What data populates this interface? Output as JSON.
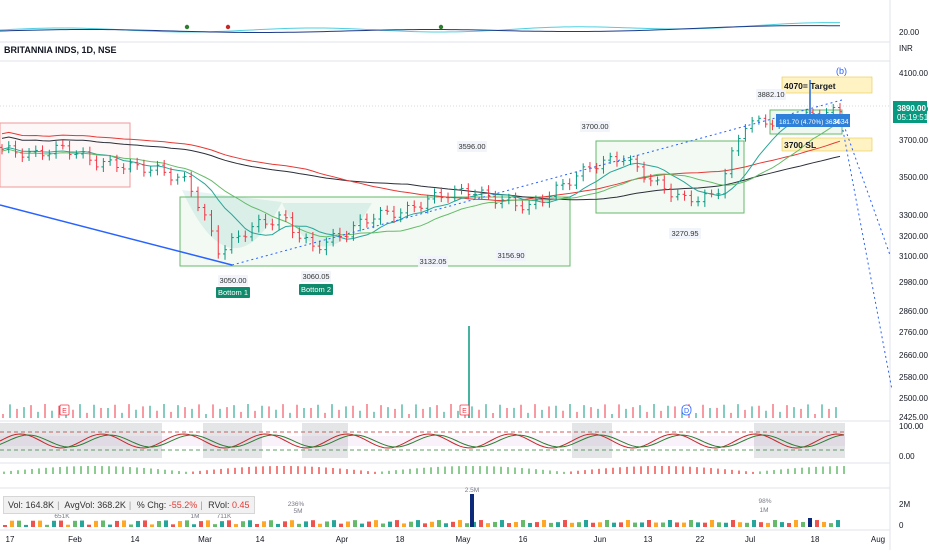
{
  "header": {
    "symbol": "BRITANNIA INDS",
    "interval": "1D",
    "exchange": "NSE",
    "currency": "INR"
  },
  "colors": {
    "up": "#089981",
    "down": "#f23645",
    "sma_long": "#2a2e39",
    "sma_mid": "#e53935",
    "ema_fast": "#26a69a",
    "ema_slow": "#66bb6a",
    "trendline": "#2962ff",
    "box_red": "#ef9a9a",
    "box_green": "#66bb6a",
    "target_fill": "#fff3c4",
    "stoch_k": "#c62828",
    "stoch_d": "#2e7d32",
    "volume_bar": "#0d2a7a"
  },
  "price_axis": {
    "ticks": [
      4100,
      3900,
      3700,
      3500,
      3300,
      3200,
      3100,
      2980,
      2860,
      2760,
      2660,
      2580,
      2500,
      2425
    ],
    "tick_labels": [
      "4100.00",
      "3900.00",
      "3700.00",
      "3500.00",
      "3300.00",
      "3200.00",
      "3100.00",
      "2980.00",
      "2860.00",
      "2760.00",
      "2660.00",
      "2580.00",
      "2500.00",
      "2425.00"
    ],
    "top_tick_label": "20.00",
    "last_price_label": "3890.00",
    "countdown": "05:19:51",
    "ma_tag_label": "3634"
  },
  "time_axis": {
    "labels": [
      "17",
      "Feb",
      "14",
      "Mar",
      "14",
      "Apr",
      "18",
      "May",
      "16",
      "Jun",
      "13",
      "22",
      "Jul",
      "18",
      "Aug"
    ]
  },
  "annotations": {
    "target_label": "4070= Target",
    "sl_label": "3700 SL",
    "wave_b": "(b)",
    "bottom1": "Bottom 1",
    "bottom2": "Bottom 2",
    "prices": [
      "3050.00",
      "3060.05",
      "3132.05",
      "3156.90",
      "3596.00",
      "3700.00",
      "3270.95",
      "3882.10"
    ],
    "position_label": "181.70 (4.70%) 3634"
  },
  "osc_axis": {
    "top": "100.00",
    "zero": "0.00"
  },
  "volume_axis": {
    "top": "2M",
    "zero": "0"
  },
  "volume_legend": {
    "vol_label": "Vol:",
    "vol": "164.8K",
    "avg_label": "AvgVol:",
    "avg": "368.2K",
    "chg_label": "% Chg:",
    "chg": "-55.2%",
    "rvol_label": "RVol:",
    "rvol": "0.45"
  },
  "volume_labels": [
    "651K",
    "236%",
    "5M",
    "1M",
    "718K",
    "711K",
    "6%",
    "2.5M",
    "98%",
    "1M"
  ],
  "events": {
    "earnings": "E",
    "dividend": "D"
  },
  "chart_data": {
    "type": "candlestick",
    "title": "BRITANNIA INDS, 1D, NSE",
    "ylabel": "INR",
    "ylim": [
      2425,
      4100
    ],
    "x": [
      "Jan 17",
      "Jan 24",
      "Jan 31",
      "Feb 7",
      "Feb 14",
      "Feb 21",
      "Feb 28",
      "Mar 6",
      "Mar 13",
      "Mar 20",
      "Mar 27",
      "Apr 3",
      "Apr 10",
      "Apr 17",
      "Apr 24",
      "May 1",
      "May 8",
      "May 15",
      "May 22",
      "May 29",
      "Jun 5",
      "Jun 12",
      "Jun 19",
      "Jun 26",
      "Jul 3",
      "Jul 10",
      "Jul 17",
      "Jul 21"
    ],
    "series": [
      {
        "close": [
          3650,
          3620,
          3660,
          3580,
          3560,
          3540,
          3470,
          3120,
          3240,
          3290,
          3140,
          3210,
          3300,
          3320,
          3400,
          3430,
          3380,
          3340,
          3450,
          3560,
          3610,
          3470,
          3380,
          3400,
          3820,
          3810,
          3860,
          3890
        ]
      }
    ],
    "annotations": [
      {
        "label": "Bottom 1",
        "value": 3050.0
      },
      {
        "label": "Bottom 2",
        "value": 3060.05
      },
      {
        "label": "4070= Target",
        "value": 4070
      },
      {
        "label": "3700 SL",
        "value": 3700
      }
    ]
  }
}
